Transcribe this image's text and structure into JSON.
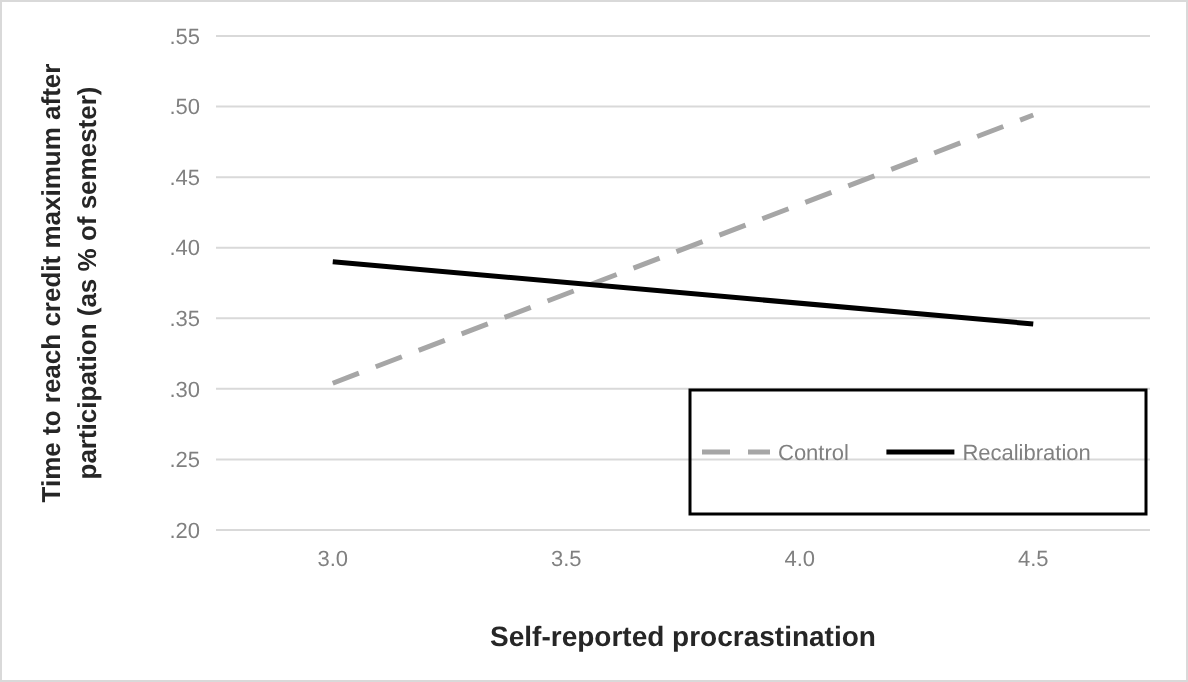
{
  "chart_data": {
    "type": "line",
    "xlabel": "Self-reported procrastination",
    "ylabel": "Time to reach credit maximum after participation (as % of semester)",
    "x": [
      3.0,
      4.5
    ],
    "series": [
      {
        "name": "Control",
        "color": "#a6a6a6",
        "values": [
          0.304,
          0.494
        ],
        "line_style": "dashed"
      },
      {
        "name": "Recalibration",
        "color": "#000000",
        "values": [
          0.39,
          0.346
        ],
        "line_style": "solid"
      }
    ],
    "xlim": [
      2.75,
      4.75
    ],
    "xticks": [
      {
        "value": 3.0,
        "label": "3.0"
      },
      {
        "value": 3.5,
        "label": "3.5"
      },
      {
        "value": 4.0,
        "label": "4.0"
      },
      {
        "value": 4.5,
        "label": "4.5"
      }
    ],
    "ylim": [
      0.2,
      0.55
    ],
    "yticks": [
      {
        "value": 0.2,
        "label": ".20"
      },
      {
        "value": 0.25,
        "label": ".25"
      },
      {
        "value": 0.3,
        "label": ".30"
      },
      {
        "value": 0.35,
        "label": ".35"
      },
      {
        "value": 0.4,
        "label": ".40"
      },
      {
        "value": 0.45,
        "label": ".45"
      },
      {
        "value": 0.5,
        "label": ".50"
      },
      {
        "value": 0.55,
        "label": ".55"
      }
    ],
    "grid": "y",
    "legend": "bottom right",
    "marker": "none"
  }
}
